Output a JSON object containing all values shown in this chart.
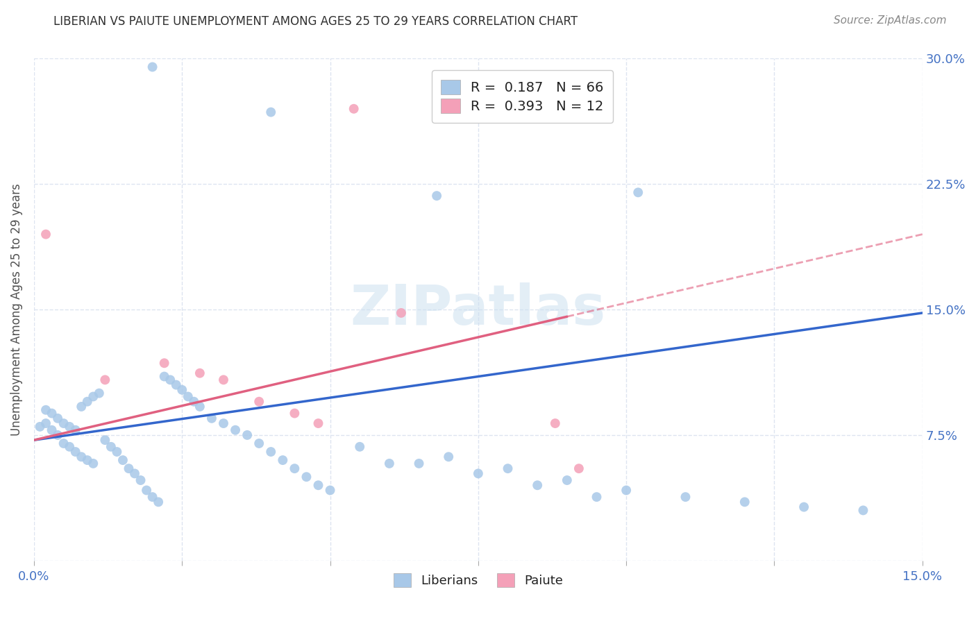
{
  "title": "LIBERIAN VS PAIUTE UNEMPLOYMENT AMONG AGES 25 TO 29 YEARS CORRELATION CHART",
  "source": "Source: ZipAtlas.com",
  "ylabel": "Unemployment Among Ages 25 to 29 years",
  "xlim": [
    0.0,
    0.15
  ],
  "ylim": [
    0.0,
    0.3
  ],
  "xtick_positions": [
    0.0,
    0.025,
    0.05,
    0.075,
    0.1,
    0.125,
    0.15
  ],
  "xtick_labels": [
    "0.0%",
    "",
    "",
    "",
    "",
    "",
    "15.0%"
  ],
  "ytick_positions": [
    0.0,
    0.075,
    0.15,
    0.225,
    0.3
  ],
  "ytick_labels_right": [
    "",
    "7.5%",
    "15.0%",
    "22.5%",
    "30.0%"
  ],
  "liberian_color": "#a8c8e8",
  "paiute_color": "#f4a0b8",
  "line_blue_color": "#3366cc",
  "line_pink_color": "#e06080",
  "liberian_R": 0.187,
  "liberian_N": 66,
  "paiute_R": 0.393,
  "paiute_N": 12,
  "title_color": "#303030",
  "source_color": "#888888",
  "tick_color": "#4472c4",
  "ylabel_color": "#505050",
  "grid_color": "#dde4f0",
  "watermark_text": "ZIPatlas",
  "watermark_color": "#cce0f0",
  "background_color": "#ffffff",
  "liberian_x": [
    0.02,
    0.04,
    0.068,
    0.102,
    0.001,
    0.002,
    0.003,
    0.004,
    0.005,
    0.006,
    0.007,
    0.008,
    0.009,
    0.01,
    0.002,
    0.003,
    0.004,
    0.005,
    0.006,
    0.007,
    0.008,
    0.009,
    0.01,
    0.011,
    0.012,
    0.013,
    0.014,
    0.015,
    0.016,
    0.017,
    0.018,
    0.019,
    0.02,
    0.021,
    0.022,
    0.023,
    0.024,
    0.025,
    0.026,
    0.027,
    0.028,
    0.03,
    0.032,
    0.034,
    0.036,
    0.038,
    0.04,
    0.042,
    0.044,
    0.046,
    0.048,
    0.05,
    0.06,
    0.07,
    0.08,
    0.09,
    0.1,
    0.11,
    0.12,
    0.13,
    0.14,
    0.055,
    0.065,
    0.075,
    0.085,
    0.095
  ],
  "liberian_y": [
    0.295,
    0.268,
    0.218,
    0.22,
    0.08,
    0.082,
    0.078,
    0.075,
    0.07,
    0.068,
    0.065,
    0.062,
    0.06,
    0.058,
    0.09,
    0.088,
    0.085,
    0.082,
    0.08,
    0.078,
    0.092,
    0.095,
    0.098,
    0.1,
    0.072,
    0.068,
    0.065,
    0.06,
    0.055,
    0.052,
    0.048,
    0.042,
    0.038,
    0.035,
    0.11,
    0.108,
    0.105,
    0.102,
    0.098,
    0.095,
    0.092,
    0.085,
    0.082,
    0.078,
    0.075,
    0.07,
    0.065,
    0.06,
    0.055,
    0.05,
    0.045,
    0.042,
    0.058,
    0.062,
    0.055,
    0.048,
    0.042,
    0.038,
    0.035,
    0.032,
    0.03,
    0.068,
    0.058,
    0.052,
    0.045,
    0.038
  ],
  "paiute_x": [
    0.002,
    0.012,
    0.022,
    0.028,
    0.032,
    0.038,
    0.044,
    0.048,
    0.054,
    0.062,
    0.088,
    0.092
  ],
  "paiute_y": [
    0.195,
    0.108,
    0.118,
    0.112,
    0.108,
    0.095,
    0.088,
    0.082,
    0.27,
    0.148,
    0.082,
    0.055
  ],
  "blue_trend_x0": 0.0,
  "blue_trend_y0": 0.072,
  "blue_trend_x1": 0.15,
  "blue_trend_y1": 0.148,
  "pink_trend_x0": 0.0,
  "pink_trend_y0": 0.072,
  "pink_trend_x1": 0.15,
  "pink_trend_y1": 0.195
}
